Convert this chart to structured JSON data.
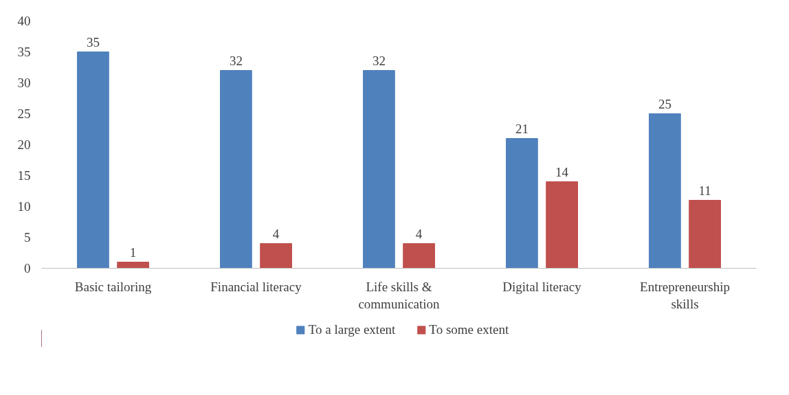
{
  "chart_data": {
    "type": "bar",
    "categories": [
      "Basic tailoring",
      "Financial literacy",
      "Life skills & communication",
      "Digital literacy",
      "Entrepreneurship skills"
    ],
    "series": [
      {
        "name": "To a large extent",
        "color": "#4f81bd",
        "values": [
          35,
          32,
          32,
          21,
          25
        ]
      },
      {
        "name": "To some extent",
        "color": "#c0504d",
        "values": [
          1,
          4,
          4,
          14,
          11
        ]
      }
    ],
    "ylim": [
      0,
      40
    ],
    "yticks": [
      0,
      5,
      10,
      15,
      20,
      25,
      30,
      35,
      40
    ],
    "grid": false,
    "legend": "bottom",
    "data_labels": true
  }
}
